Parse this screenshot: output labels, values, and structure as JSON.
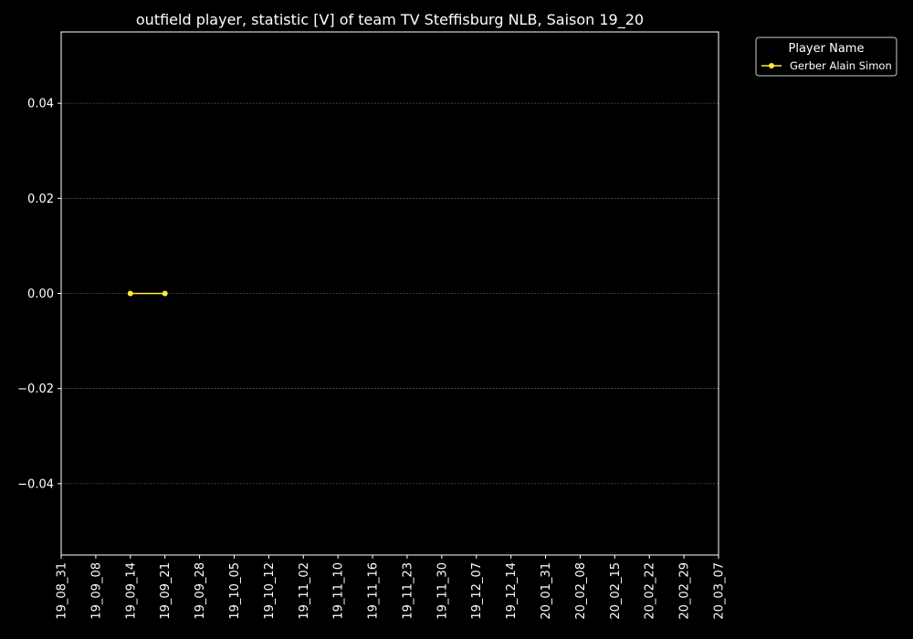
{
  "chart_data": {
    "type": "line",
    "title": "outfield player, statistic [V] of team TV Steffisburg NLB, Saison 19_20",
    "xlabel": "",
    "ylabel": "",
    "categories": [
      "19_08_31",
      "19_09_08",
      "19_09_14",
      "19_09_21",
      "19_09_28",
      "19_10_05",
      "19_10_12",
      "19_11_02",
      "19_11_10",
      "19_11_16",
      "19_11_23",
      "19_11_30",
      "19_12_07",
      "19_12_14",
      "20_01_31",
      "20_02_08",
      "20_02_15",
      "20_02_22",
      "20_02_29",
      "20_03_07"
    ],
    "yticks": [
      -0.04,
      -0.02,
      0.0,
      0.02,
      0.04
    ],
    "ytick_labels": [
      "−0.04",
      "−0.02",
      "0.00",
      "0.02",
      "0.04"
    ],
    "ylim": [
      -0.055,
      0.055
    ],
    "grid": true,
    "legend": {
      "title": "Player Name",
      "placement": "outside-top-right"
    },
    "series": [
      {
        "name": "Gerber Alain Simon",
        "color": "#ffeb3b",
        "marker": "circle",
        "points": [
          {
            "x": "19_09_14",
            "y": 0.0
          },
          {
            "x": "19_09_21",
            "y": 0.0
          }
        ]
      }
    ]
  },
  "colors": {
    "background": "#000000",
    "foreground": "#ffffff",
    "grid": "#777777"
  }
}
